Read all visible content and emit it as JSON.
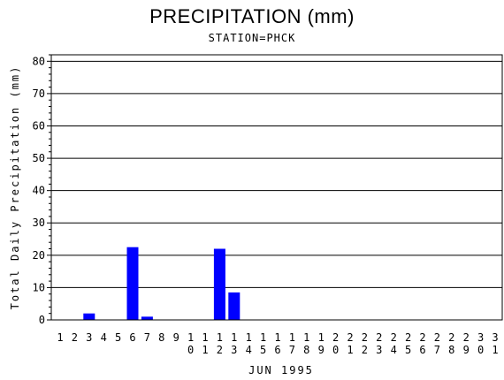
{
  "chart_data": {
    "type": "bar",
    "title": "PRECIPITATION (mm)",
    "subtitle": "STATION=PHCK",
    "xlabel": "JUN 1995",
    "ylabel": "Total Daily Precipitation (mm)",
    "ylim": [
      0,
      82
    ],
    "yticks": [
      0,
      10,
      20,
      30,
      40,
      50,
      60,
      70,
      80
    ],
    "grid": true,
    "bar_color": "#0000ff",
    "categories": [
      "1",
      "2",
      "3",
      "4",
      "5",
      "6",
      "7",
      "8",
      "9",
      "10",
      "11",
      "12",
      "13",
      "14",
      "15",
      "16",
      "17",
      "18",
      "19",
      "20",
      "21",
      "22",
      "23",
      "24",
      "25",
      "26",
      "27",
      "28",
      "29",
      "30",
      "31"
    ],
    "values": [
      0,
      0,
      2,
      0,
      0,
      22.5,
      1,
      0,
      0,
      0,
      0,
      22,
      8.5,
      0,
      0,
      0,
      0,
      0,
      0,
      0,
      0,
      0,
      0,
      0,
      0,
      0,
      0,
      0,
      0,
      0,
      0
    ]
  }
}
